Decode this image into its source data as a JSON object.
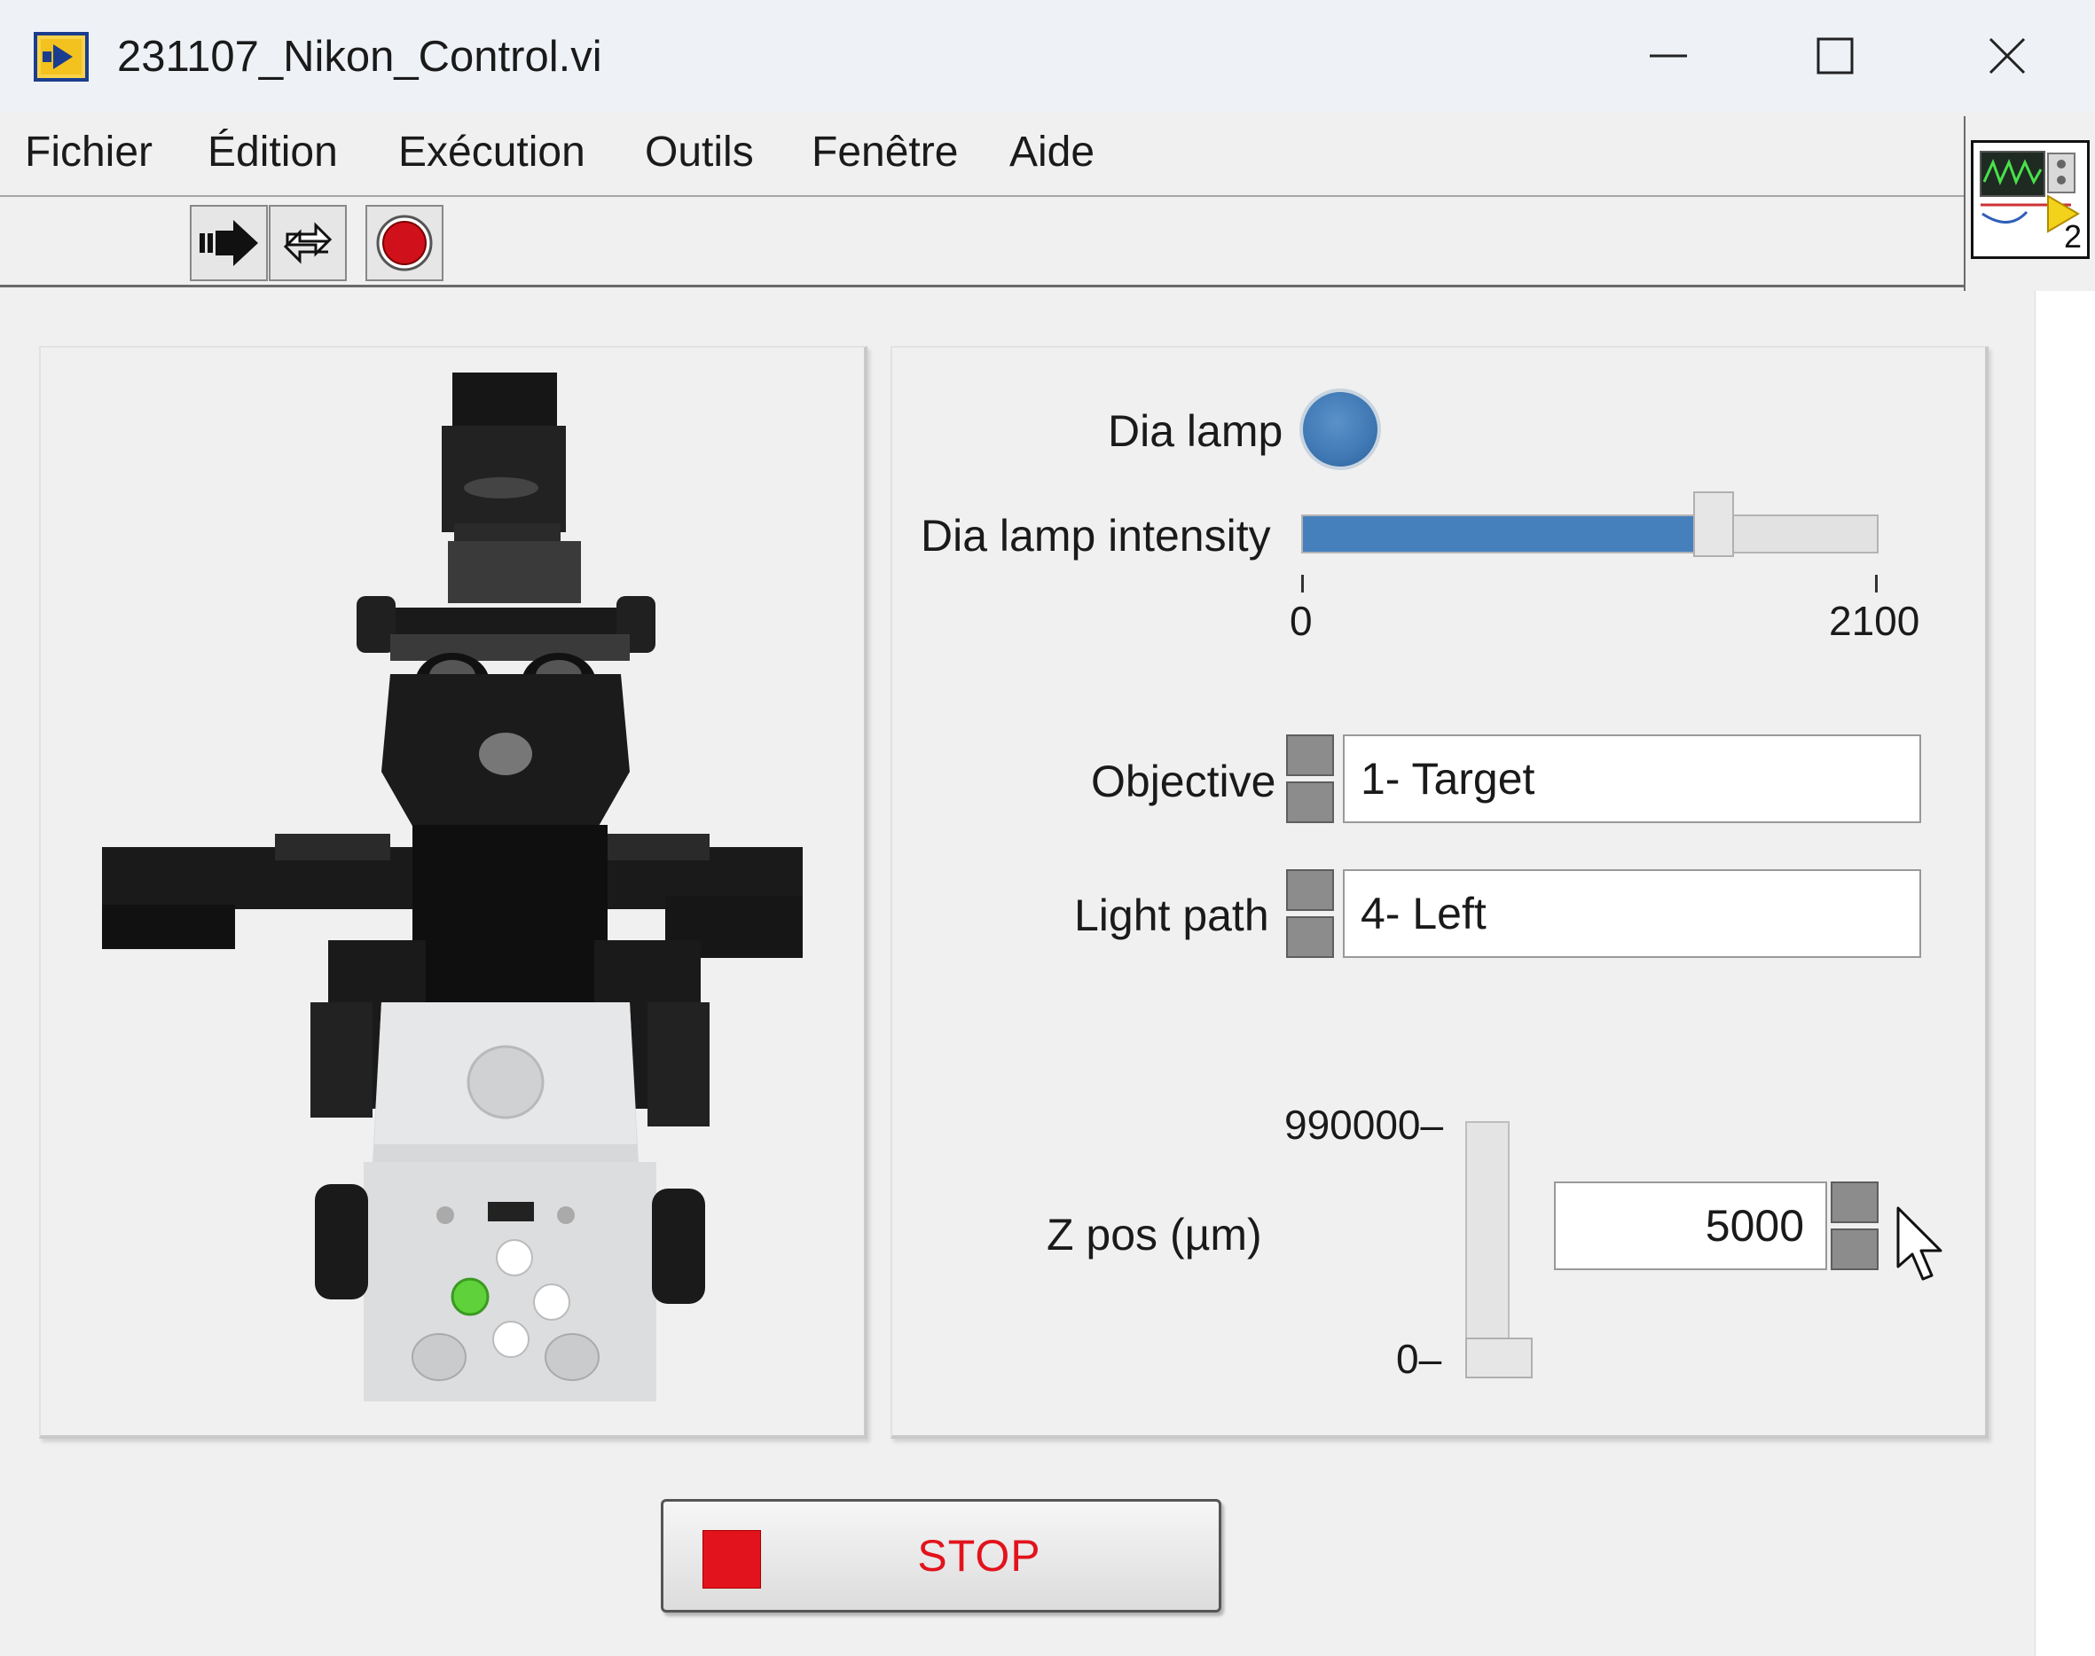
{
  "window": {
    "title": "231107_Nikon_Control.vi",
    "controls": [
      "minimize-icon",
      "maximize-icon",
      "close-icon"
    ]
  },
  "menu": {
    "items": [
      "Fichier",
      "Édition",
      "Exécution",
      "Outils",
      "Fenêtre",
      "Aide"
    ]
  },
  "toolbar": {
    "buttons": [
      "run-arrow-icon",
      "run-continuously-icon",
      "abort-execution-icon"
    ]
  },
  "vi_icon": {
    "badge": "2"
  },
  "controls": {
    "dia_lamp": {
      "label": "Dia lamp",
      "state": "on",
      "color": "#3f78b4"
    },
    "dia_lamp_intensity": {
      "label": "Dia lamp intensity",
      "min_label": "0",
      "max_label": "2100",
      "min": 0,
      "max": 2100,
      "value": 1480
    },
    "objective": {
      "label": "Objective",
      "value": "1- Target"
    },
    "light_path": {
      "label": "Light path",
      "value": "4- Left"
    },
    "z_pos": {
      "label": "Z pos (µm)",
      "max_label": "990000",
      "min_label": "0",
      "value": "5000"
    }
  },
  "stop_button": {
    "label": "STOP",
    "color": "#e2131c"
  },
  "colors": {
    "accent_blue": "#4580bd",
    "stop_red": "#e2131c",
    "led_green": "#5fd13a"
  }
}
